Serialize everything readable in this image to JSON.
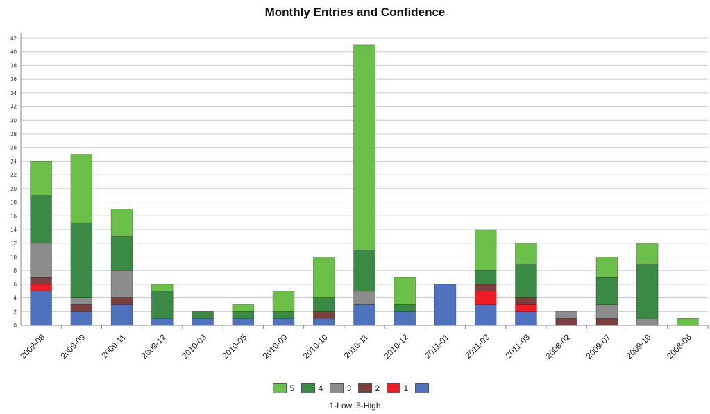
{
  "chart_data": {
    "type": "bar",
    "stacked": true,
    "title": "Monthly Entries and Confidence",
    "xlabel": "",
    "ylabel": "",
    "ylim": [
      0,
      42
    ],
    "ytick_step": 2,
    "grid": true,
    "legend_position": "bottom",
    "legend_caption": "1-Low, 5-High",
    "categories": [
      "2009-08",
      "2009-09",
      "2009-11",
      "2009-12",
      "2010-03",
      "2010-05",
      "2010-09",
      "2010-10",
      "2010-11",
      "2010-12",
      "2011-01",
      "2011-02",
      "2011-03",
      "2008-02",
      "2009-07",
      "2009-10",
      "2008-06"
    ],
    "series": [
      {
        "name": "",
        "color": "#4f72be",
        "values": [
          5,
          2,
          3,
          1,
          1,
          1,
          1,
          1,
          3,
          2,
          6,
          3,
          2,
          0,
          0,
          0,
          0
        ]
      },
      {
        "name": "1",
        "color": "#ee1c24",
        "values": [
          1,
          0,
          0,
          0,
          0,
          0,
          0,
          0,
          0,
          0,
          0,
          2,
          1,
          0,
          0,
          0,
          0
        ]
      },
      {
        "name": "2",
        "color": "#7b3f3f",
        "values": [
          1,
          1,
          1,
          0,
          0,
          0,
          0,
          1,
          0,
          0,
          0,
          1,
          1,
          1,
          1,
          0,
          0
        ]
      },
      {
        "name": "3",
        "color": "#8c8c8c",
        "values": [
          5,
          1,
          4,
          0,
          0,
          0,
          0,
          0,
          2,
          0,
          0,
          0,
          0,
          1,
          2,
          1,
          0
        ]
      },
      {
        "name": "4",
        "color": "#3a8a46",
        "values": [
          7,
          11,
          5,
          4,
          1,
          1,
          1,
          2,
          6,
          1,
          0,
          2,
          5,
          0,
          4,
          8,
          0
        ]
      },
      {
        "name": "5",
        "color": "#6cc049",
        "values": [
          5,
          10,
          4,
          1,
          0,
          1,
          3,
          6,
          30,
          4,
          0,
          6,
          3,
          0,
          3,
          3,
          1
        ]
      }
    ],
    "legend_order": [
      5,
      4,
      3,
      2,
      1,
      0
    ]
  }
}
